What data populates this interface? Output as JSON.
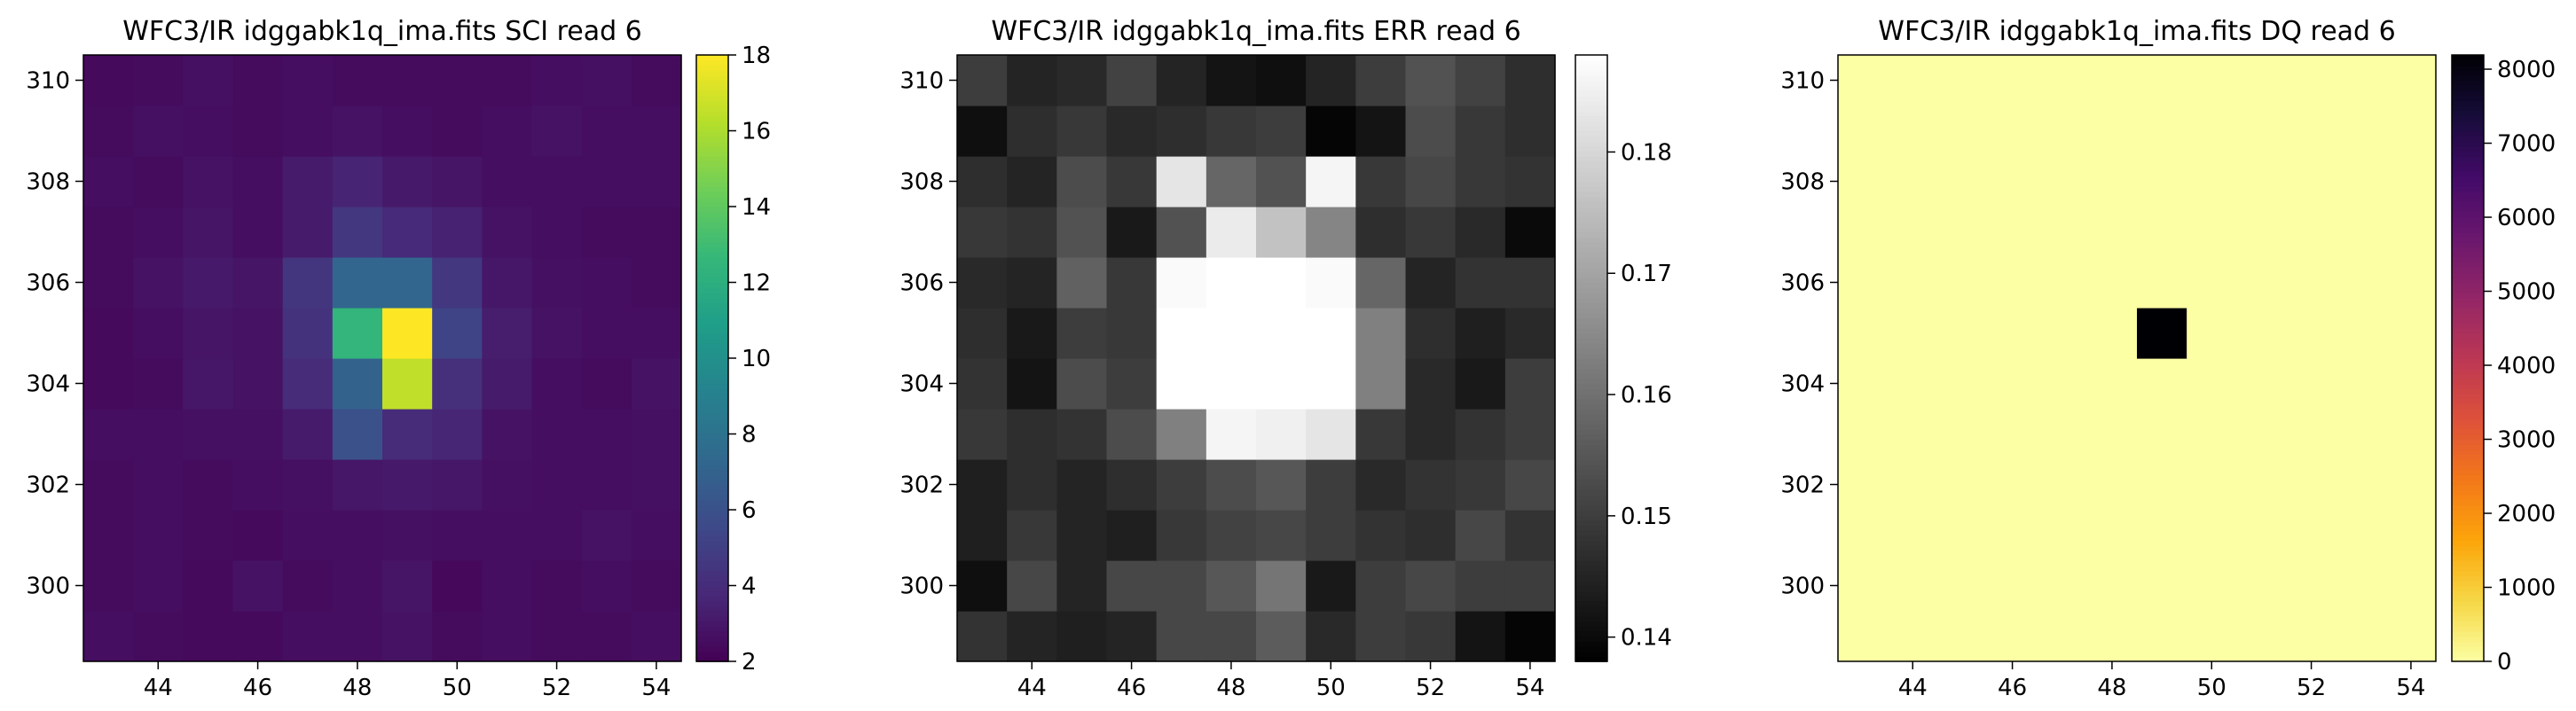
{
  "chart_data": [
    {
      "type": "heatmap",
      "title": "WFC3/IR idggabk1q_ima.fits  SCI read 6",
      "colormap": "viridis",
      "x": [
        43,
        44,
        45,
        46,
        47,
        48,
        49,
        50,
        51,
        52,
        53,
        54
      ],
      "y": [
        299,
        300,
        301,
        302,
        303,
        304,
        305,
        306,
        307,
        308,
        309,
        310
      ],
      "xticks": [
        44,
        46,
        48,
        50,
        52,
        54
      ],
      "yticks": [
        300,
        302,
        304,
        306,
        308,
        310
      ],
      "xlim": [
        43,
        55
      ],
      "ylim": [
        299,
        311
      ],
      "colorbar": {
        "range": [
          2,
          18
        ],
        "ticks": [
          2,
          4,
          6,
          8,
          10,
          12,
          14,
          16,
          18
        ]
      },
      "values": [
        [
          2.6,
          2.5,
          2.4,
          2.4,
          2.6,
          2.6,
          2.8,
          2.5,
          2.6,
          2.5,
          2.5,
          2.6
        ],
        [
          2.5,
          2.6,
          2.4,
          2.8,
          2.5,
          2.6,
          2.9,
          2.3,
          2.6,
          2.5,
          2.6,
          2.5
        ],
        [
          2.5,
          2.6,
          2.5,
          2.4,
          2.6,
          2.6,
          2.7,
          2.6,
          2.6,
          2.6,
          2.8,
          2.6
        ],
        [
          2.5,
          2.6,
          2.5,
          2.6,
          2.7,
          3.0,
          3.1,
          3.0,
          2.7,
          2.6,
          2.6,
          2.7
        ],
        [
          2.6,
          2.6,
          2.7,
          2.7,
          3.2,
          6.0,
          4.0,
          3.7,
          2.8,
          2.6,
          2.6,
          2.7
        ],
        [
          2.4,
          2.5,
          3.0,
          2.8,
          4.0,
          7.0,
          16.5,
          4.2,
          3.2,
          2.6,
          2.5,
          2.8
        ],
        [
          2.4,
          2.6,
          2.9,
          2.8,
          4.3,
          12.5,
          18.0,
          5.3,
          3.3,
          2.8,
          2.6,
          2.6
        ],
        [
          2.5,
          2.8,
          3.1,
          2.9,
          4.5,
          7.2,
          7.2,
          4.6,
          3.0,
          2.7,
          2.6,
          2.5
        ],
        [
          2.5,
          2.6,
          2.9,
          2.6,
          3.2,
          4.6,
          3.9,
          3.5,
          2.8,
          2.6,
          2.5,
          2.5
        ],
        [
          2.6,
          2.5,
          2.8,
          2.6,
          3.2,
          3.6,
          3.1,
          2.9,
          2.6,
          2.6,
          2.6,
          2.6
        ],
        [
          2.5,
          2.7,
          2.6,
          2.5,
          2.6,
          2.8,
          2.6,
          2.5,
          2.6,
          2.8,
          2.6,
          2.6
        ],
        [
          2.4,
          2.5,
          2.7,
          2.5,
          2.6,
          2.5,
          2.5,
          2.5,
          2.5,
          2.6,
          2.7,
          2.5
        ]
      ]
    },
    {
      "type": "heatmap",
      "title": "WFC3/IR idggabk1q_ima.fits  ERR read 6",
      "colormap": "gray",
      "x": [
        43,
        44,
        45,
        46,
        47,
        48,
        49,
        50,
        51,
        52,
        53,
        54
      ],
      "y": [
        299,
        300,
        301,
        302,
        303,
        304,
        305,
        306,
        307,
        308,
        309,
        310
      ],
      "xticks": [
        44,
        46,
        48,
        50,
        52,
        54
      ],
      "yticks": [
        300,
        302,
        304,
        306,
        308,
        310
      ],
      "xlim": [
        43,
        55
      ],
      "ylim": [
        299,
        311
      ],
      "colorbar": {
        "range": [
          0.138,
          0.188
        ],
        "ticks": [
          0.14,
          0.15,
          0.16,
          0.17,
          0.18
        ]
      },
      "values": [
        [
          0.148,
          0.145,
          0.144,
          0.145,
          0.152,
          0.152,
          0.156,
          0.146,
          0.15,
          0.149,
          0.142,
          0.139
        ],
        [
          0.141,
          0.152,
          0.145,
          0.152,
          0.152,
          0.155,
          0.161,
          0.143,
          0.15,
          0.152,
          0.15,
          0.15
        ],
        [
          0.144,
          0.149,
          0.145,
          0.144,
          0.149,
          0.151,
          0.152,
          0.15,
          0.148,
          0.147,
          0.152,
          0.148
        ],
        [
          0.144,
          0.147,
          0.145,
          0.147,
          0.15,
          0.153,
          0.155,
          0.15,
          0.146,
          0.148,
          0.149,
          0.152
        ],
        [
          0.149,
          0.147,
          0.148,
          0.153,
          0.163,
          0.186,
          0.185,
          0.183,
          0.149,
          0.146,
          0.148,
          0.15
        ],
        [
          0.148,
          0.142,
          0.153,
          0.15,
          0.188,
          0.188,
          0.188,
          0.188,
          0.163,
          0.146,
          0.143,
          0.15
        ],
        [
          0.147,
          0.143,
          0.15,
          0.149,
          0.188,
          0.188,
          0.188,
          0.188,
          0.163,
          0.147,
          0.144,
          0.146
        ],
        [
          0.146,
          0.145,
          0.157,
          0.149,
          0.187,
          0.188,
          0.188,
          0.187,
          0.158,
          0.145,
          0.148,
          0.148
        ],
        [
          0.149,
          0.148,
          0.154,
          0.143,
          0.154,
          0.184,
          0.176,
          0.164,
          0.147,
          0.149,
          0.146,
          0.14
        ],
        [
          0.147,
          0.145,
          0.153,
          0.149,
          0.183,
          0.158,
          0.154,
          0.186,
          0.149,
          0.152,
          0.149,
          0.148
        ],
        [
          0.141,
          0.147,
          0.149,
          0.146,
          0.147,
          0.149,
          0.15,
          0.139,
          0.142,
          0.153,
          0.149,
          0.147
        ],
        [
          0.15,
          0.145,
          0.146,
          0.151,
          0.145,
          0.142,
          0.141,
          0.145,
          0.15,
          0.154,
          0.151,
          0.147
        ]
      ]
    },
    {
      "type": "heatmap",
      "title": "WFC3/IR idggabk1q_ima.fits  DQ read 6",
      "colormap": "inferno_r",
      "x": [
        43,
        44,
        45,
        46,
        47,
        48,
        49,
        50,
        51,
        52,
        53,
        54
      ],
      "y": [
        299,
        300,
        301,
        302,
        303,
        304,
        305,
        306,
        307,
        308,
        309,
        310
      ],
      "xticks": [
        44,
        46,
        48,
        50,
        52,
        54
      ],
      "yticks": [
        300,
        302,
        304,
        306,
        308,
        310
      ],
      "xlim": [
        43,
        55
      ],
      "ylim": [
        299,
        311
      ],
      "colorbar": {
        "range": [
          0,
          8192
        ],
        "ticks": [
          0,
          1000,
          2000,
          3000,
          4000,
          5000,
          6000,
          7000,
          8000
        ]
      },
      "values": [
        [
          0,
          0,
          0,
          0,
          0,
          0,
          0,
          0,
          0,
          0,
          0,
          0
        ],
        [
          0,
          0,
          0,
          0,
          0,
          0,
          0,
          0,
          0,
          0,
          0,
          0
        ],
        [
          0,
          0,
          0,
          0,
          0,
          0,
          0,
          0,
          0,
          0,
          0,
          0
        ],
        [
          0,
          0,
          0,
          0,
          0,
          0,
          0,
          0,
          0,
          0,
          0,
          0
        ],
        [
          0,
          0,
          0,
          0,
          0,
          0,
          0,
          0,
          0,
          0,
          0,
          0
        ],
        [
          0,
          0,
          0,
          0,
          0,
          0,
          0,
          0,
          0,
          0,
          0,
          0
        ],
        [
          0,
          0,
          0,
          0,
          0,
          0,
          8192,
          0,
          0,
          0,
          0,
          0
        ],
        [
          0,
          0,
          0,
          0,
          0,
          0,
          0,
          0,
          0,
          0,
          0,
          0
        ],
        [
          0,
          0,
          0,
          0,
          0,
          0,
          0,
          0,
          0,
          0,
          0,
          0
        ],
        [
          0,
          0,
          0,
          0,
          0,
          0,
          0,
          0,
          0,
          0,
          0,
          0
        ],
        [
          0,
          0,
          0,
          0,
          0,
          0,
          0,
          0,
          0,
          0,
          0,
          0
        ],
        [
          0,
          0,
          0,
          0,
          0,
          0,
          0,
          0,
          0,
          0,
          0,
          0
        ]
      ]
    }
  ]
}
